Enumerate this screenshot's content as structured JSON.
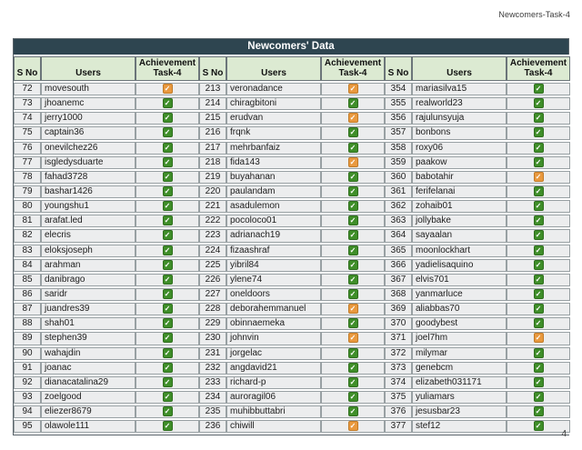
{
  "page": {
    "header_label": "Newcomers-Task-4",
    "page_number": "4"
  },
  "colors": {
    "title_bg": "#2e4550",
    "header_bg": "#dcead2",
    "row_bg": "#ecedee",
    "outer_border": "#59636a",
    "check_green": "#3f8e29",
    "check_orange": "#e9993f"
  },
  "table": {
    "title": "Newcomers' Data",
    "column_headers": [
      "S No",
      "Users",
      "Achievement Task-4"
    ],
    "check_glyph": "✓",
    "groups": [
      {
        "rows": [
          {
            "s_no": 72,
            "user": "movesouth",
            "status": "orange"
          },
          {
            "s_no": 73,
            "user": "jhoanemc",
            "status": "green"
          },
          {
            "s_no": 74,
            "user": "jerry1000",
            "status": "green"
          },
          {
            "s_no": 75,
            "user": "captain36",
            "status": "green"
          },
          {
            "s_no": 76,
            "user": "onevilchez26",
            "status": "green"
          },
          {
            "s_no": 77,
            "user": "isgledysduarte",
            "status": "green"
          },
          {
            "s_no": 78,
            "user": "fahad3728",
            "status": "green"
          },
          {
            "s_no": 79,
            "user": "bashar1426",
            "status": "green"
          },
          {
            "s_no": 80,
            "user": "youngshu1",
            "status": "green"
          },
          {
            "s_no": 81,
            "user": "arafat.led",
            "status": "green"
          },
          {
            "s_no": 82,
            "user": "elecris",
            "status": "green"
          },
          {
            "s_no": 83,
            "user": "eloksjoseph",
            "status": "green"
          },
          {
            "s_no": 84,
            "user": "arahman",
            "status": "green"
          },
          {
            "s_no": 85,
            "user": "danibrago",
            "status": "green"
          },
          {
            "s_no": 86,
            "user": "saridr",
            "status": "green"
          },
          {
            "s_no": 87,
            "user": "juandres39",
            "status": "green"
          },
          {
            "s_no": 88,
            "user": "shah01",
            "status": "green"
          },
          {
            "s_no": 89,
            "user": "stephen39",
            "status": "green"
          },
          {
            "s_no": 90,
            "user": "wahajdin",
            "status": "green"
          },
          {
            "s_no": 91,
            "user": "joanac",
            "status": "green"
          },
          {
            "s_no": 92,
            "user": "dianacatalina29",
            "status": "green"
          },
          {
            "s_no": 93,
            "user": "zoelgood",
            "status": "green"
          },
          {
            "s_no": 94,
            "user": "eliezer8679",
            "status": "green"
          },
          {
            "s_no": 95,
            "user": "olawole111",
            "status": "green"
          }
        ]
      },
      {
        "rows": [
          {
            "s_no": 213,
            "user": "veronadance",
            "status": "orange"
          },
          {
            "s_no": 214,
            "user": "chiragbitoni",
            "status": "green"
          },
          {
            "s_no": 215,
            "user": "erudvan",
            "status": "orange"
          },
          {
            "s_no": 216,
            "user": "frqnk",
            "status": "green"
          },
          {
            "s_no": 217,
            "user": "mehrbanfaiz",
            "status": "green"
          },
          {
            "s_no": 218,
            "user": "fida143",
            "status": "orange"
          },
          {
            "s_no": 219,
            "user": "buyahanan",
            "status": "green"
          },
          {
            "s_no": 220,
            "user": "paulandam",
            "status": "green"
          },
          {
            "s_no": 221,
            "user": "asadulemon",
            "status": "green"
          },
          {
            "s_no": 222,
            "user": "pocoloco01",
            "status": "green"
          },
          {
            "s_no": 223,
            "user": "adrianach19",
            "status": "green"
          },
          {
            "s_no": 224,
            "user": "fizaashraf",
            "status": "green"
          },
          {
            "s_no": 225,
            "user": "yibril84",
            "status": "green"
          },
          {
            "s_no": 226,
            "user": "ylene74",
            "status": "green"
          },
          {
            "s_no": 227,
            "user": "oneldoors",
            "status": "green"
          },
          {
            "s_no": 228,
            "user": "deborahemmanuel",
            "status": "orange"
          },
          {
            "s_no": 229,
            "user": "obinnaemeka",
            "status": "green"
          },
          {
            "s_no": 230,
            "user": "johnvin",
            "status": "orange"
          },
          {
            "s_no": 231,
            "user": "jorgelac",
            "status": "green"
          },
          {
            "s_no": 232,
            "user": "angdavid21",
            "status": "green"
          },
          {
            "s_no": 233,
            "user": "richard-p",
            "status": "green"
          },
          {
            "s_no": 234,
            "user": "auroragil06",
            "status": "green"
          },
          {
            "s_no": 235,
            "user": "muhibbuttabri",
            "status": "green"
          },
          {
            "s_no": 236,
            "user": "chiwill",
            "status": "orange"
          }
        ]
      },
      {
        "rows": [
          {
            "s_no": 354,
            "user": "mariasilva15",
            "status": "green"
          },
          {
            "s_no": 355,
            "user": "realworld23",
            "status": "green"
          },
          {
            "s_no": 356,
            "user": "rajulunsyuja",
            "status": "green"
          },
          {
            "s_no": 357,
            "user": "bonbons",
            "status": "green"
          },
          {
            "s_no": 358,
            "user": "roxy06",
            "status": "green"
          },
          {
            "s_no": 359,
            "user": "paakow",
            "status": "green"
          },
          {
            "s_no": 360,
            "user": "babotahir",
            "status": "orange"
          },
          {
            "s_no": 361,
            "user": "ferifelanai",
            "status": "green"
          },
          {
            "s_no": 362,
            "user": "zohaib01",
            "status": "green"
          },
          {
            "s_no": 363,
            "user": "jollybake",
            "status": "green"
          },
          {
            "s_no": 364,
            "user": "sayaalan",
            "status": "green"
          },
          {
            "s_no": 365,
            "user": "moonlockhart",
            "status": "green"
          },
          {
            "s_no": 366,
            "user": "yadielisaquino",
            "status": "green"
          },
          {
            "s_no": 367,
            "user": "elvis701",
            "status": "green"
          },
          {
            "s_no": 368,
            "user": "yanmarluce",
            "status": "green"
          },
          {
            "s_no": 369,
            "user": "aliabbas70",
            "status": "green"
          },
          {
            "s_no": 370,
            "user": "goodybest",
            "status": "green"
          },
          {
            "s_no": 371,
            "user": "joel7hm",
            "status": "orange"
          },
          {
            "s_no": 372,
            "user": "milymar",
            "status": "green"
          },
          {
            "s_no": 373,
            "user": "genebcm",
            "status": "green"
          },
          {
            "s_no": 374,
            "user": "elizabeth031171",
            "status": "green"
          },
          {
            "s_no": 375,
            "user": "yuliamars",
            "status": "green"
          },
          {
            "s_no": 376,
            "user": "jesusbar23",
            "status": "green"
          },
          {
            "s_no": 377,
            "user": "stef12",
            "status": "green"
          }
        ]
      }
    ]
  }
}
